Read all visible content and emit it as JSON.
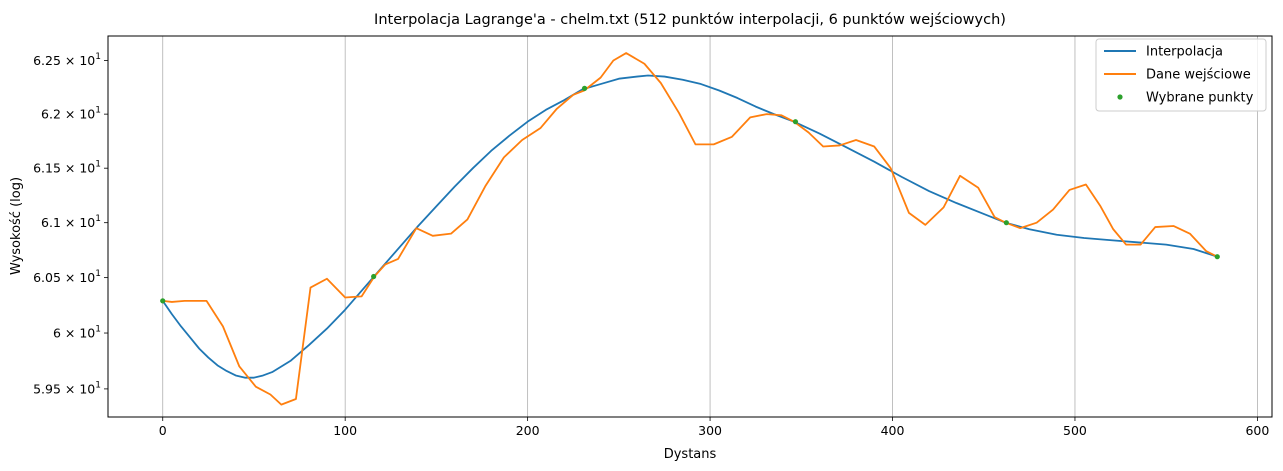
{
  "chart_data": {
    "type": "line",
    "title": "Interpolacja Lagrange'a - chelm.txt (512 punktów interpolacji, 6 punktów wejściowych)",
    "xlabel": "Dystans",
    "ylabel": "Wysokość (log)",
    "xlim": [
      -30,
      608
    ],
    "ylim": [
      59.25,
      62.73
    ],
    "y_scale": "log",
    "grid": "vertical",
    "legend_position": "top-right",
    "x_ticks": [
      0,
      100,
      200,
      300,
      400,
      500,
      600
    ],
    "x_tick_labels": [
      "0",
      "100",
      "200",
      "300",
      "400",
      "500",
      "600"
    ],
    "y_ticks": [
      59.5,
      60.0,
      60.5,
      61.0,
      61.5,
      62.0,
      62.5
    ],
    "y_tick_labels": [
      {
        "mantissa": "5.95",
        "base": "10",
        "exp": "1"
      },
      {
        "mantissa": "6",
        "base": "10",
        "exp": "1"
      },
      {
        "mantissa": "6.05",
        "base": "10",
        "exp": "1"
      },
      {
        "mantissa": "6.1",
        "base": "10",
        "exp": "1"
      },
      {
        "mantissa": "6.15",
        "base": "10",
        "exp": "1"
      },
      {
        "mantissa": "6.2",
        "base": "10",
        "exp": "1"
      },
      {
        "mantissa": "6.25",
        "base": "10",
        "exp": "1"
      }
    ],
    "series": [
      {
        "name": "Interpolacja",
        "kind": "line",
        "color": "#1f77b4",
        "points": [
          [
            0,
            60.29
          ],
          [
            5,
            60.17
          ],
          [
            10,
            60.06
          ],
          [
            15,
            59.96
          ],
          [
            20,
            59.86
          ],
          [
            25,
            59.78
          ],
          [
            30,
            59.71
          ],
          [
            35,
            59.66
          ],
          [
            40,
            59.62
          ],
          [
            45,
            59.6
          ],
          [
            50,
            59.6
          ],
          [
            55,
            59.62
          ],
          [
            60,
            59.65
          ],
          [
            65,
            59.7
          ],
          [
            70,
            59.75
          ],
          [
            75,
            59.82
          ],
          [
            80,
            59.89
          ],
          [
            90,
            60.04
          ],
          [
            100,
            60.21
          ],
          [
            110,
            60.4
          ],
          [
            120,
            60.59
          ],
          [
            130,
            60.78
          ],
          [
            140,
            60.97
          ],
          [
            150,
            61.15
          ],
          [
            160,
            61.33
          ],
          [
            170,
            61.5
          ],
          [
            180,
            61.66
          ],
          [
            190,
            61.8
          ],
          [
            200,
            61.93
          ],
          [
            210,
            62.04
          ],
          [
            220,
            62.13
          ],
          [
            230,
            62.23
          ],
          [
            240,
            62.28
          ],
          [
            250,
            62.33
          ],
          [
            260,
            62.35
          ],
          [
            266,
            62.36
          ],
          [
            275,
            62.35
          ],
          [
            285,
            62.32
          ],
          [
            295,
            62.28
          ],
          [
            305,
            62.22
          ],
          [
            315,
            62.15
          ],
          [
            325,
            62.07
          ],
          [
            335,
            62.0
          ],
          [
            346,
            61.93
          ],
          [
            360,
            61.82
          ],
          [
            375,
            61.69
          ],
          [
            390,
            61.56
          ],
          [
            405,
            61.42
          ],
          [
            420,
            61.29
          ],
          [
            435,
            61.18
          ],
          [
            450,
            61.08
          ],
          [
            462,
            61.0
          ],
          [
            475,
            60.94
          ],
          [
            490,
            60.89
          ],
          [
            505,
            60.86
          ],
          [
            520,
            60.84
          ],
          [
            535,
            60.82
          ],
          [
            550,
            60.8
          ],
          [
            565,
            60.76
          ],
          [
            578,
            60.69
          ]
        ]
      },
      {
        "name": "Dane wejściowe",
        "kind": "line",
        "color": "#ff7f0e",
        "points": [
          [
            0,
            60.29
          ],
          [
            5,
            60.28
          ],
          [
            12,
            60.29
          ],
          [
            18,
            60.29
          ],
          [
            24,
            60.29
          ],
          [
            33,
            60.06
          ],
          [
            42,
            59.7
          ],
          [
            51,
            59.52
          ],
          [
            59,
            59.45
          ],
          [
            65,
            59.36
          ],
          [
            73,
            59.41
          ],
          [
            81,
            60.41
          ],
          [
            90,
            60.49
          ],
          [
            100,
            60.32
          ],
          [
            109,
            60.33
          ],
          [
            116,
            60.51
          ],
          [
            122,
            60.62
          ],
          [
            129,
            60.67
          ],
          [
            139,
            60.95
          ],
          [
            148,
            60.88
          ],
          [
            158,
            60.9
          ],
          [
            167,
            61.03
          ],
          [
            177,
            61.34
          ],
          [
            187,
            61.6
          ],
          [
            197,
            61.76
          ],
          [
            207,
            61.87
          ],
          [
            216,
            62.05
          ],
          [
            225,
            62.18
          ],
          [
            231,
            62.22
          ],
          [
            240,
            62.34
          ],
          [
            247,
            62.5
          ],
          [
            254,
            62.57
          ],
          [
            264,
            62.47
          ],
          [
            273,
            62.29
          ],
          [
            283,
            62.01
          ],
          [
            292,
            61.72
          ],
          [
            302,
            61.72
          ],
          [
            312,
            61.79
          ],
          [
            322,
            61.97
          ],
          [
            331,
            62.0
          ],
          [
            339,
            61.99
          ],
          [
            346,
            61.93
          ],
          [
            354,
            61.83
          ],
          [
            362,
            61.7
          ],
          [
            371,
            61.71
          ],
          [
            380,
            61.76
          ],
          [
            390,
            61.7
          ],
          [
            399,
            61.5
          ],
          [
            409,
            61.09
          ],
          [
            418,
            60.98
          ],
          [
            428,
            61.14
          ],
          [
            437,
            61.43
          ],
          [
            447,
            61.32
          ],
          [
            456,
            61.05
          ],
          [
            462,
            61.0
          ],
          [
            470,
            60.95
          ],
          [
            479,
            61.0
          ],
          [
            488,
            61.12
          ],
          [
            497,
            61.3
          ],
          [
            506,
            61.35
          ],
          [
            514,
            61.15
          ],
          [
            521,
            60.94
          ],
          [
            528,
            60.8
          ],
          [
            536,
            60.8
          ],
          [
            544,
            60.96
          ],
          [
            554,
            60.97
          ],
          [
            563,
            60.9
          ],
          [
            572,
            60.74
          ],
          [
            578,
            60.69
          ]
        ]
      },
      {
        "name": "Wybrane punkty",
        "kind": "scatter",
        "color": "#2ca02c",
        "points": [
          [
            0,
            60.29
          ],
          [
            115.6,
            60.51
          ],
          [
            231.2,
            62.24
          ],
          [
            346.8,
            61.93
          ],
          [
            462.4,
            61.0
          ],
          [
            578,
            60.69
          ]
        ]
      }
    ]
  }
}
